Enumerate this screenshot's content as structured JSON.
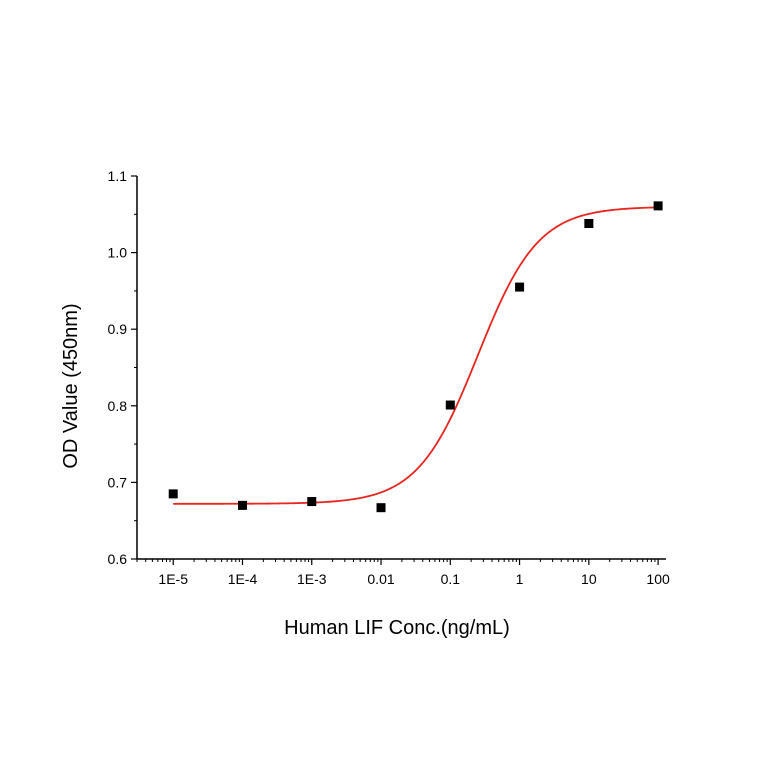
{
  "chart_data": {
    "type": "scatter",
    "title": "",
    "xlabel": "Human LIF Conc.(ng/mL)",
    "ylabel": "OD Value (450nm)",
    "x_scale": "log",
    "xlim": [
      3e-06,
      130
    ],
    "ylim": [
      0.6,
      1.1
    ],
    "x_ticks": [
      {
        "value": 1e-05,
        "label": "1E-5"
      },
      {
        "value": 0.0001,
        "label": "1E-4"
      },
      {
        "value": 0.001,
        "label": "1E-3"
      },
      {
        "value": 0.01,
        "label": "0.01"
      },
      {
        "value": 0.1,
        "label": "0.1"
      },
      {
        "value": 1,
        "label": "1"
      },
      {
        "value": 10,
        "label": "10"
      },
      {
        "value": 100,
        "label": "100"
      }
    ],
    "y_ticks": [
      {
        "value": 0.6,
        "label": "0.6"
      },
      {
        "value": 0.7,
        "label": "0.7"
      },
      {
        "value": 0.8,
        "label": "0.8"
      },
      {
        "value": 0.9,
        "label": "0.9"
      },
      {
        "value": 1.0,
        "label": "1.0"
      },
      {
        "value": 1.1,
        "label": "1.1"
      }
    ],
    "grid": false,
    "legend": "none",
    "series": [
      {
        "kind": "points",
        "marker": "square",
        "color": "#000000",
        "x": [
          1e-05,
          0.0001,
          0.001,
          0.01,
          0.1,
          1,
          10,
          100
        ],
        "y": [
          0.685,
          0.67,
          0.675,
          0.667,
          0.801,
          0.955,
          1.038,
          1.061
        ]
      },
      {
        "kind": "fit-curve",
        "model": "4PL",
        "color": "#e8251f",
        "bottom": 0.672,
        "top": 1.06,
        "ec50": 0.25,
        "hill": 1.0,
        "x_range": [
          1e-05,
          100
        ]
      }
    ]
  }
}
